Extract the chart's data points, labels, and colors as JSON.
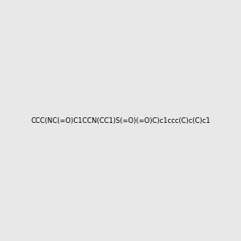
{
  "smiles": "CCC(NC(=O)C1CCN(CC1)S(=O)(=O)C)c1ccc(C)c(C)c1",
  "image_size": 300,
  "background_color": "#e8e8e8",
  "title": "",
  "atom_colors": {
    "N": "blue",
    "O": "red",
    "S": "yellow"
  }
}
